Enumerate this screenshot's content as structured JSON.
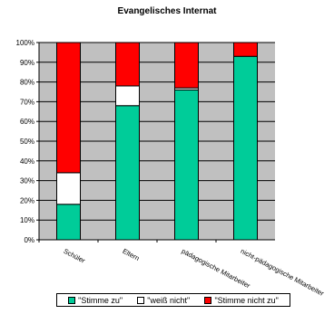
{
  "chart_data": {
    "type": "bar",
    "stacked": true,
    "title": "Evangelisches Internat",
    "categories": [
      "Schüler",
      "Eltern",
      "pädagogische Mitarbeiter",
      "nicht-pädagogische Mitarbeiter"
    ],
    "series": [
      {
        "name": "\"Stimme zu\"",
        "color": "#00cc99",
        "values": [
          18,
          68,
          76,
          93
        ]
      },
      {
        "name": "\"weiß nicht\"",
        "color": "#ffffff",
        "values": [
          16,
          10,
          1,
          0
        ]
      },
      {
        "name": "\"Stimme nicht zu\"",
        "color": "#ff0000",
        "values": [
          66,
          22,
          23,
          7
        ]
      }
    ],
    "ylim": [
      0,
      100
    ],
    "yticks": [
      "0%",
      "10%",
      "20%",
      "30%",
      "40%",
      "50%",
      "60%",
      "70%",
      "80%",
      "90%",
      "100%"
    ],
    "grid": true,
    "plot_background": "#c0c0c0",
    "legend_position": "bottom"
  }
}
